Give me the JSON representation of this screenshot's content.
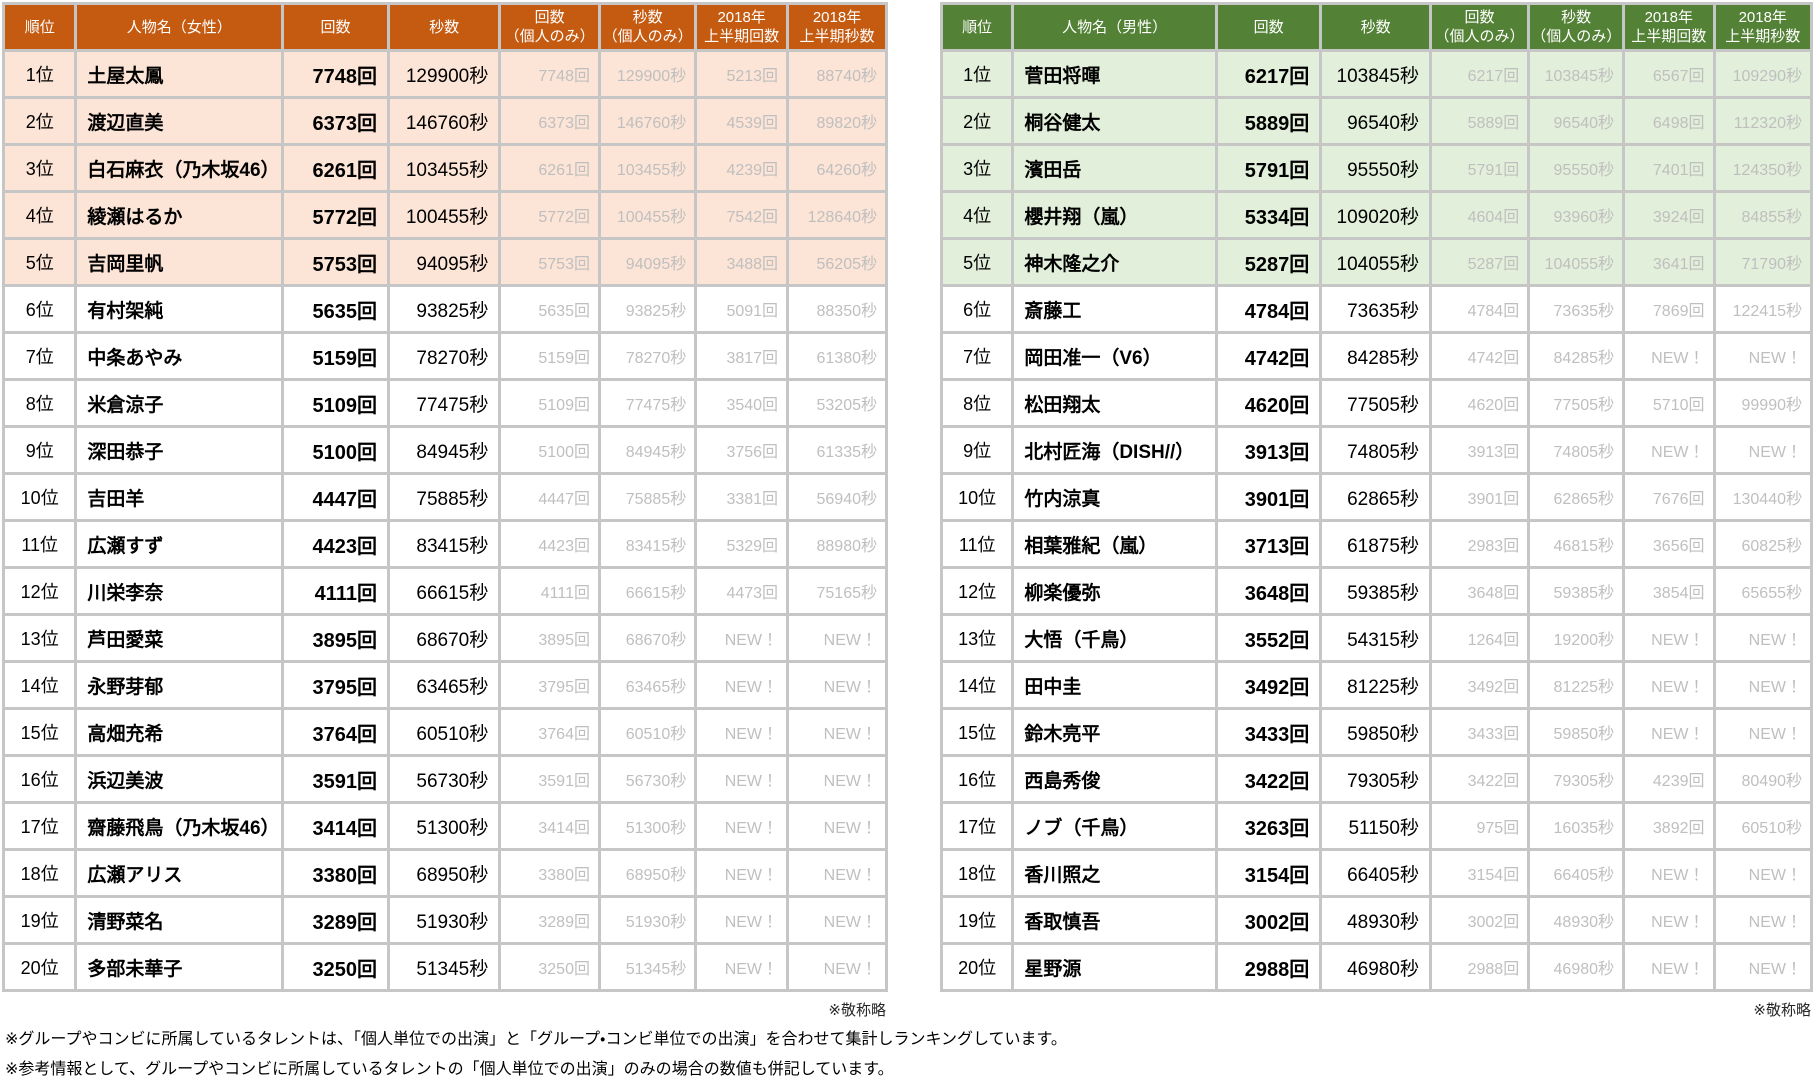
{
  "notes": {
    "footnote1": "※グループやコンビに所属しているタレントは、「個人単位での出演」と「グループ・コンビ単位での出演」を合わせて集計しランキングしています。",
    "footnote2": "※参考情報として、グループやコンビに所属しているタレントの「個人単位での出演」のみの場合の数値も併記しています。"
  },
  "colors": {
    "female_header_bg": "#C55A11",
    "female_row_tint": "#FCE4D6",
    "male_header_bg": "#538135",
    "male_row_tint": "#E2EFDA",
    "header_text": "#FFFFFF",
    "muted_text": "#BFBFBF",
    "grid_border": "#C6C6C6"
  },
  "tables": [
    {
      "key": "female",
      "honorific": "※敬称略",
      "highlight_rows": 5,
      "headers": [
        [
          "順位"
        ],
        [
          "人物名（女性）"
        ],
        [
          "回数"
        ],
        [
          "秒数"
        ],
        [
          "回数",
          "（個人のみ）"
        ],
        [
          "秒数",
          "（個人のみ）"
        ],
        [
          "2018年",
          "上半期回数"
        ],
        [
          "2018年",
          "上半期秒数"
        ]
      ],
      "rows": [
        {
          "rank": "1位",
          "name": "土屋太鳳",
          "count": "7748回",
          "seconds": "129900秒",
          "count_solo": "7748回",
          "seconds_solo": "129900秒",
          "h1_count": "5213回",
          "h1_seconds": "88740秒"
        },
        {
          "rank": "2位",
          "name": "渡辺直美",
          "count": "6373回",
          "seconds": "146760秒",
          "count_solo": "6373回",
          "seconds_solo": "146760秒",
          "h1_count": "4539回",
          "h1_seconds": "89820秒"
        },
        {
          "rank": "3位",
          "name": "白石麻衣（乃木坂46）",
          "count": "6261回",
          "seconds": "103455秒",
          "count_solo": "6261回",
          "seconds_solo": "103455秒",
          "h1_count": "4239回",
          "h1_seconds": "64260秒"
        },
        {
          "rank": "4位",
          "name": "綾瀬はるか",
          "count": "5772回",
          "seconds": "100455秒",
          "count_solo": "5772回",
          "seconds_solo": "100455秒",
          "h1_count": "7542回",
          "h1_seconds": "128640秒"
        },
        {
          "rank": "5位",
          "name": "吉岡里帆",
          "count": "5753回",
          "seconds": "94095秒",
          "count_solo": "5753回",
          "seconds_solo": "94095秒",
          "h1_count": "3488回",
          "h1_seconds": "56205秒"
        },
        {
          "rank": "6位",
          "name": "有村架純",
          "count": "5635回",
          "seconds": "93825秒",
          "count_solo": "5635回",
          "seconds_solo": "93825秒",
          "h1_count": "5091回",
          "h1_seconds": "88350秒"
        },
        {
          "rank": "7位",
          "name": "中条あやみ",
          "count": "5159回",
          "seconds": "78270秒",
          "count_solo": "5159回",
          "seconds_solo": "78270秒",
          "h1_count": "3817回",
          "h1_seconds": "61380秒"
        },
        {
          "rank": "8位",
          "name": "米倉涼子",
          "count": "5109回",
          "seconds": "77475秒",
          "count_solo": "5109回",
          "seconds_solo": "77475秒",
          "h1_count": "3540回",
          "h1_seconds": "53205秒"
        },
        {
          "rank": "9位",
          "name": "深田恭子",
          "count": "5100回",
          "seconds": "84945秒",
          "count_solo": "5100回",
          "seconds_solo": "84945秒",
          "h1_count": "3756回",
          "h1_seconds": "61335秒"
        },
        {
          "rank": "10位",
          "name": "吉田羊",
          "count": "4447回",
          "seconds": "75885秒",
          "count_solo": "4447回",
          "seconds_solo": "75885秒",
          "h1_count": "3381回",
          "h1_seconds": "56940秒"
        },
        {
          "rank": "11位",
          "name": "広瀬すず",
          "count": "4423回",
          "seconds": "83415秒",
          "count_solo": "4423回",
          "seconds_solo": "83415秒",
          "h1_count": "5329回",
          "h1_seconds": "88980秒"
        },
        {
          "rank": "12位",
          "name": "川栄李奈",
          "count": "4111回",
          "seconds": "66615秒",
          "count_solo": "4111回",
          "seconds_solo": "66615秒",
          "h1_count": "4473回",
          "h1_seconds": "75165秒"
        },
        {
          "rank": "13位",
          "name": "芦田愛菜",
          "count": "3895回",
          "seconds": "68670秒",
          "count_solo": "3895回",
          "seconds_solo": "68670秒",
          "h1_count": "NEW！",
          "h1_seconds": "NEW！"
        },
        {
          "rank": "14位",
          "name": "永野芽郁",
          "count": "3795回",
          "seconds": "63465秒",
          "count_solo": "3795回",
          "seconds_solo": "63465秒",
          "h1_count": "NEW！",
          "h1_seconds": "NEW！"
        },
        {
          "rank": "15位",
          "name": "高畑充希",
          "count": "3764回",
          "seconds": "60510秒",
          "count_solo": "3764回",
          "seconds_solo": "60510秒",
          "h1_count": "NEW！",
          "h1_seconds": "NEW！"
        },
        {
          "rank": "16位",
          "name": "浜辺美波",
          "count": "3591回",
          "seconds": "56730秒",
          "count_solo": "3591回",
          "seconds_solo": "56730秒",
          "h1_count": "NEW！",
          "h1_seconds": "NEW！"
        },
        {
          "rank": "17位",
          "name": "齋藤飛鳥（乃木坂46）",
          "count": "3414回",
          "seconds": "51300秒",
          "count_solo": "3414回",
          "seconds_solo": "51300秒",
          "h1_count": "NEW！",
          "h1_seconds": "NEW！"
        },
        {
          "rank": "18位",
          "name": "広瀬アリス",
          "count": "3380回",
          "seconds": "68950秒",
          "count_solo": "3380回",
          "seconds_solo": "68950秒",
          "h1_count": "NEW！",
          "h1_seconds": "NEW！"
        },
        {
          "rank": "19位",
          "name": "清野菜名",
          "count": "3289回",
          "seconds": "51930秒",
          "count_solo": "3289回",
          "seconds_solo": "51930秒",
          "h1_count": "NEW！",
          "h1_seconds": "NEW！"
        },
        {
          "rank": "20位",
          "name": "多部未華子",
          "count": "3250回",
          "seconds": "51345秒",
          "count_solo": "3250回",
          "seconds_solo": "51345秒",
          "h1_count": "NEW！",
          "h1_seconds": "NEW！"
        }
      ]
    },
    {
      "key": "male",
      "honorific": "※敬称略",
      "highlight_rows": 5,
      "headers": [
        [
          "順位"
        ],
        [
          "人物名（男性）"
        ],
        [
          "回数"
        ],
        [
          "秒数"
        ],
        [
          "回数",
          "（個人のみ）"
        ],
        [
          "秒数",
          "（個人のみ）"
        ],
        [
          "2018年",
          "上半期回数"
        ],
        [
          "2018年",
          "上半期秒数"
        ]
      ],
      "rows": [
        {
          "rank": "1位",
          "name": "菅田将暉",
          "count": "6217回",
          "seconds": "103845秒",
          "count_solo": "6217回",
          "seconds_solo": "103845秒",
          "h1_count": "6567回",
          "h1_seconds": "109290秒"
        },
        {
          "rank": "2位",
          "name": "桐谷健太",
          "count": "5889回",
          "seconds": "96540秒",
          "count_solo": "5889回",
          "seconds_solo": "96540秒",
          "h1_count": "6498回",
          "h1_seconds": "112320秒"
        },
        {
          "rank": "3位",
          "name": "濱田岳",
          "count": "5791回",
          "seconds": "95550秒",
          "count_solo": "5791回",
          "seconds_solo": "95550秒",
          "h1_count": "7401回",
          "h1_seconds": "124350秒"
        },
        {
          "rank": "4位",
          "name": "櫻井翔（嵐）",
          "count": "5334回",
          "seconds": "109020秒",
          "count_solo": "4604回",
          "seconds_solo": "93960秒",
          "h1_count": "3924回",
          "h1_seconds": "84855秒"
        },
        {
          "rank": "5位",
          "name": "神木隆之介",
          "count": "5287回",
          "seconds": "104055秒",
          "count_solo": "5287回",
          "seconds_solo": "104055秒",
          "h1_count": "3641回",
          "h1_seconds": "71790秒"
        },
        {
          "rank": "6位",
          "name": "斎藤工",
          "count": "4784回",
          "seconds": "73635秒",
          "count_solo": "4784回",
          "seconds_solo": "73635秒",
          "h1_count": "7869回",
          "h1_seconds": "122415秒"
        },
        {
          "rank": "7位",
          "name": "岡田准一（V6）",
          "count": "4742回",
          "seconds": "84285秒",
          "count_solo": "4742回",
          "seconds_solo": "84285秒",
          "h1_count": "NEW！",
          "h1_seconds": "NEW！"
        },
        {
          "rank": "8位",
          "name": "松田翔太",
          "count": "4620回",
          "seconds": "77505秒",
          "count_solo": "4620回",
          "seconds_solo": "77505秒",
          "h1_count": "5710回",
          "h1_seconds": "99990秒"
        },
        {
          "rank": "9位",
          "name": "北村匠海（DISH//）",
          "count": "3913回",
          "seconds": "74805秒",
          "count_solo": "3913回",
          "seconds_solo": "74805秒",
          "h1_count": "NEW！",
          "h1_seconds": "NEW！"
        },
        {
          "rank": "10位",
          "name": "竹内涼真",
          "count": "3901回",
          "seconds": "62865秒",
          "count_solo": "3901回",
          "seconds_solo": "62865秒",
          "h1_count": "7676回",
          "h1_seconds": "130440秒"
        },
        {
          "rank": "11位",
          "name": "相葉雅紀（嵐）",
          "count": "3713回",
          "seconds": "61875秒",
          "count_solo": "2983回",
          "seconds_solo": "46815秒",
          "h1_count": "3656回",
          "h1_seconds": "60825秒"
        },
        {
          "rank": "12位",
          "name": "柳楽優弥",
          "count": "3648回",
          "seconds": "59385秒",
          "count_solo": "3648回",
          "seconds_solo": "59385秒",
          "h1_count": "3854回",
          "h1_seconds": "65655秒"
        },
        {
          "rank": "13位",
          "name": "大悟（千鳥）",
          "count": "3552回",
          "seconds": "54315秒",
          "count_solo": "1264回",
          "seconds_solo": "19200秒",
          "h1_count": "NEW！",
          "h1_seconds": "NEW！"
        },
        {
          "rank": "14位",
          "name": "田中圭",
          "count": "3492回",
          "seconds": "81225秒",
          "count_solo": "3492回",
          "seconds_solo": "81225秒",
          "h1_count": "NEW！",
          "h1_seconds": "NEW！"
        },
        {
          "rank": "15位",
          "name": "鈴木亮平",
          "count": "3433回",
          "seconds": "59850秒",
          "count_solo": "3433回",
          "seconds_solo": "59850秒",
          "h1_count": "NEW！",
          "h1_seconds": "NEW！"
        },
        {
          "rank": "16位",
          "name": "西島秀俊",
          "count": "3422回",
          "seconds": "79305秒",
          "count_solo": "3422回",
          "seconds_solo": "79305秒",
          "h1_count": "4239回",
          "h1_seconds": "80490秒"
        },
        {
          "rank": "17位",
          "name": "ノブ（千鳥）",
          "count": "3263回",
          "seconds": "51150秒",
          "count_solo": "975回",
          "seconds_solo": "16035秒",
          "h1_count": "3892回",
          "h1_seconds": "60510秒"
        },
        {
          "rank": "18位",
          "name": "香川照之",
          "count": "3154回",
          "seconds": "66405秒",
          "count_solo": "3154回",
          "seconds_solo": "66405秒",
          "h1_count": "NEW！",
          "h1_seconds": "NEW！"
        },
        {
          "rank": "19位",
          "name": "香取慎吾",
          "count": "3002回",
          "seconds": "48930秒",
          "count_solo": "3002回",
          "seconds_solo": "48930秒",
          "h1_count": "NEW！",
          "h1_seconds": "NEW！"
        },
        {
          "rank": "20位",
          "name": "星野源",
          "count": "2988回",
          "seconds": "46980秒",
          "count_solo": "2988回",
          "seconds_solo": "46980秒",
          "h1_count": "NEW！",
          "h1_seconds": "NEW！"
        }
      ]
    }
  ]
}
